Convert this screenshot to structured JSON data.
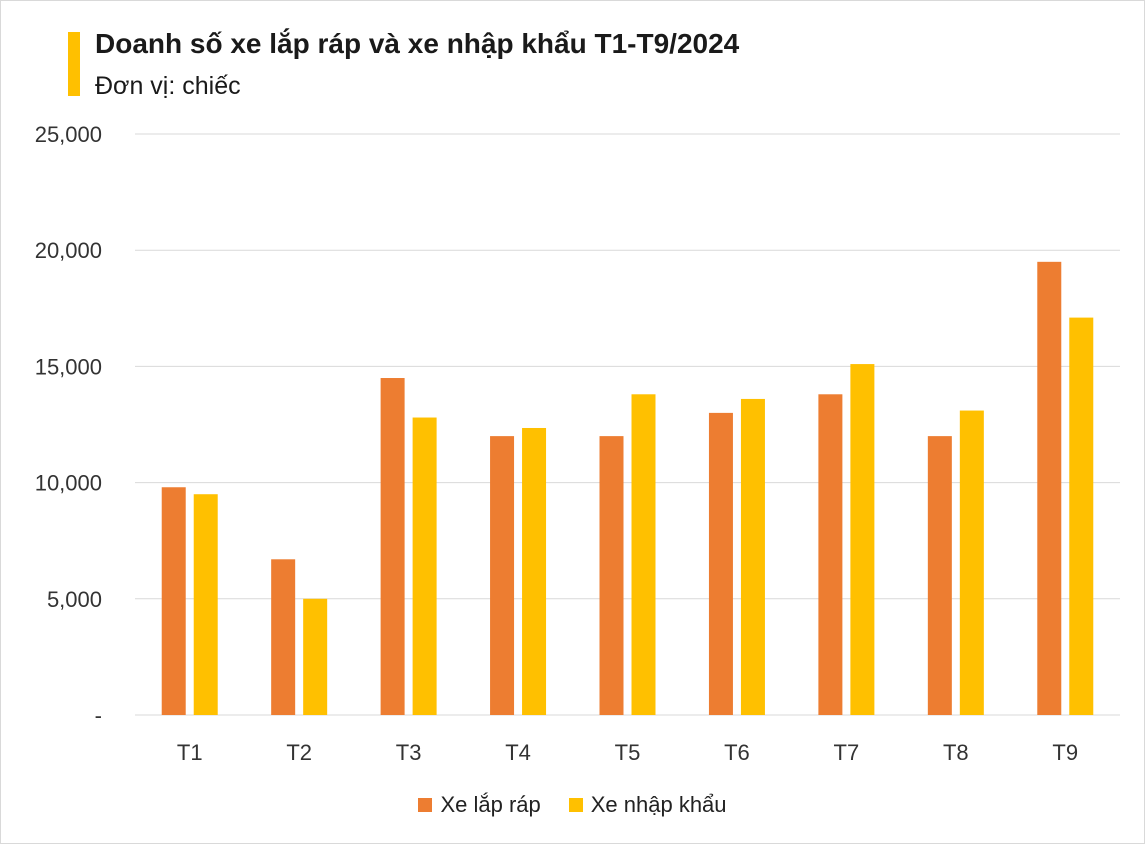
{
  "chart_data": {
    "type": "bar",
    "title": "Doanh số xe lắp ráp và xe nhập khẩu T1-T9/2024",
    "subtitle": "Đơn vị: chiếc",
    "xlabel": "",
    "ylabel": "",
    "categories": [
      "T1",
      "T2",
      "T3",
      "T4",
      "T5",
      "T6",
      "T7",
      "T8",
      "T9"
    ],
    "series": [
      {
        "name": "Xe lắp ráp",
        "color": "#ED7D31",
        "values": [
          9800,
          6700,
          14500,
          12000,
          12000,
          13000,
          13800,
          12000,
          19500
        ]
      },
      {
        "name": "Xe nhập khẩu",
        "color": "#FFC000",
        "values": [
          9500,
          5000,
          12800,
          12350,
          13800,
          13600,
          15100,
          13100,
          17100
        ]
      }
    ],
    "ylim": [
      0,
      25000
    ],
    "yticks": [
      0,
      5000,
      10000,
      15000,
      20000,
      25000
    ],
    "ytick_labels": [
      "-",
      "5,000",
      "10,000",
      "15,000",
      "20,000",
      "25,000"
    ],
    "grid": true,
    "legend_position": "bottom",
    "accent_color": "#FFC000"
  }
}
